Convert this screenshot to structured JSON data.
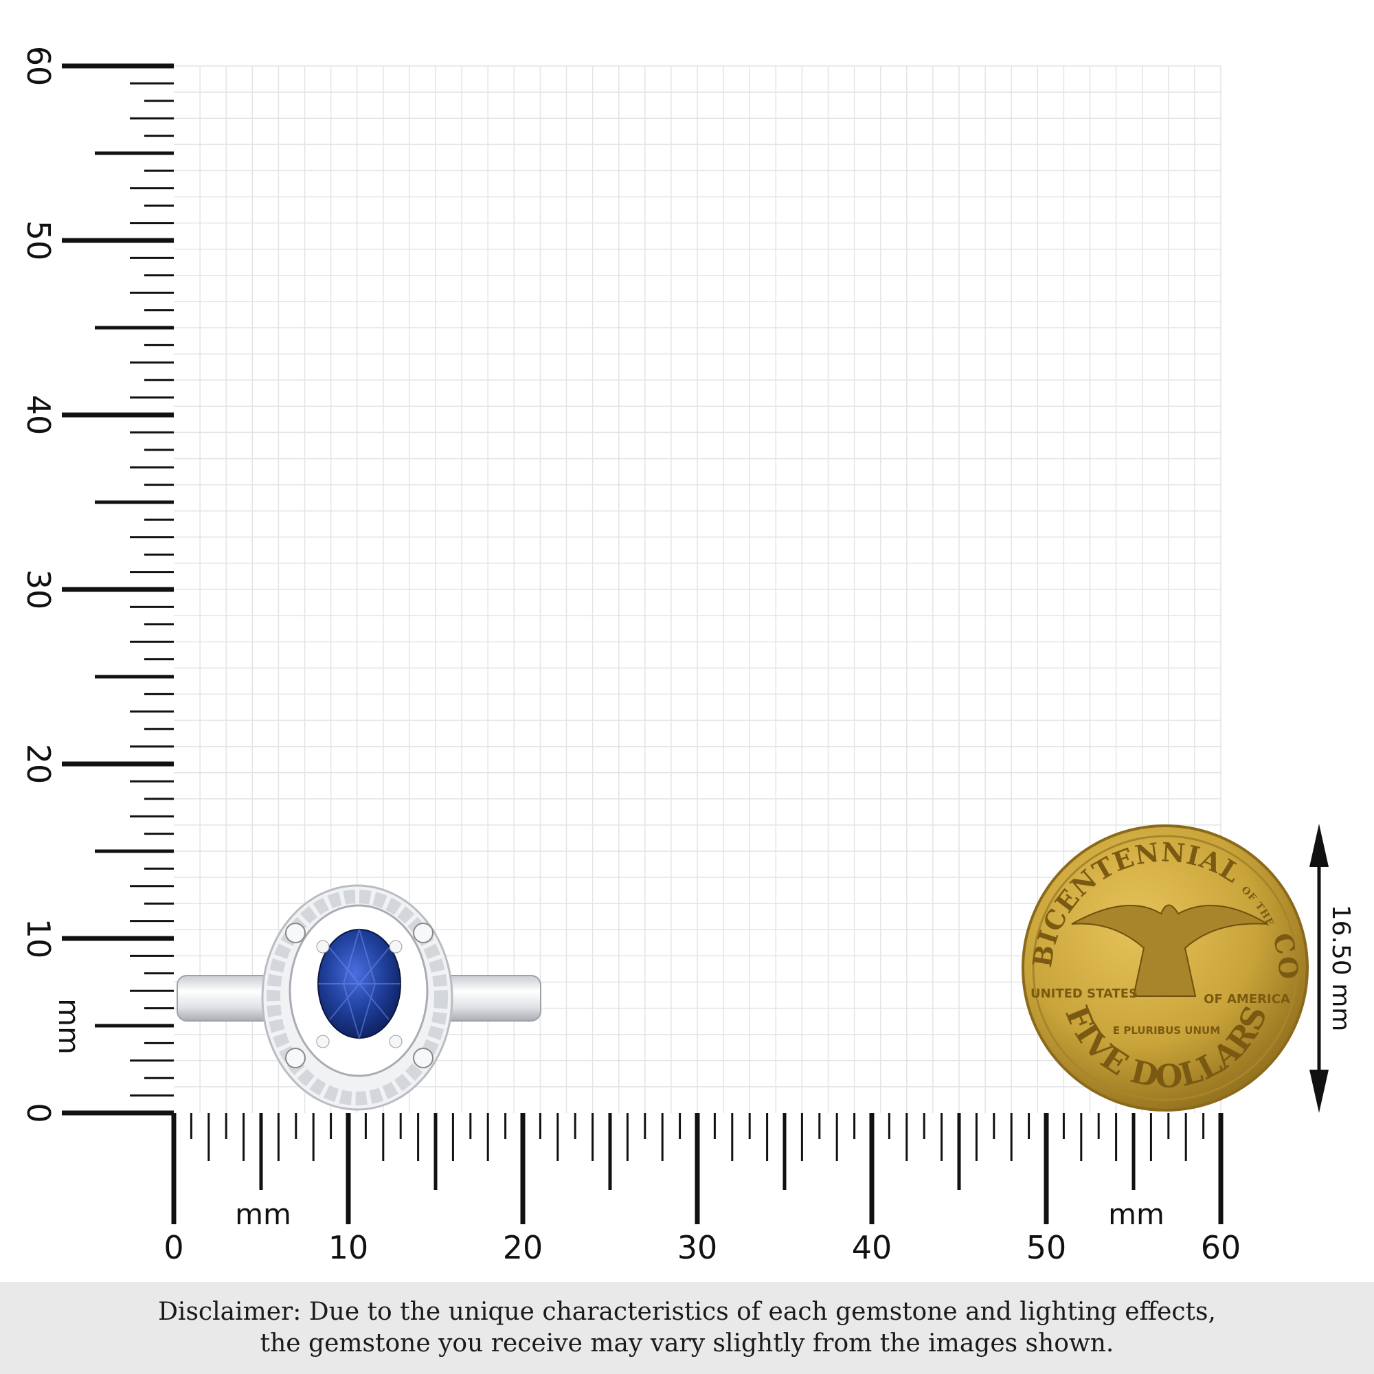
{
  "ruler": {
    "unit_label": "mm",
    "min": 0,
    "max": 60,
    "major_step": 10,
    "mid_step": 5,
    "minor_step": 1,
    "grid_step": 1.5,
    "labels": [
      "0",
      "10",
      "20",
      "30",
      "40",
      "50",
      "60"
    ]
  },
  "ring": {
    "stone_color": "#1f3f9a",
    "metal_color": "#e6e8ec"
  },
  "coin": {
    "top_text": "BICENTENNIAL",
    "of_the": "OF THE",
    "top_text_right": "CONGRESS",
    "left_text": "UNITED STATES",
    "right_text": "OF AMERICA",
    "motto": "E PLURIBUS UNUM",
    "bottom_text": "FIVE DOLLARS",
    "color": "#c9a43a"
  },
  "dimension": {
    "label": "16.50 mm",
    "value_mm": 16.5
  },
  "disclaimer": {
    "line1": "Disclaimer: Due to the unique characteristics of each gemstone and lighting effects,",
    "line2": "the gemstone you receive may vary slightly from the images shown."
  }
}
